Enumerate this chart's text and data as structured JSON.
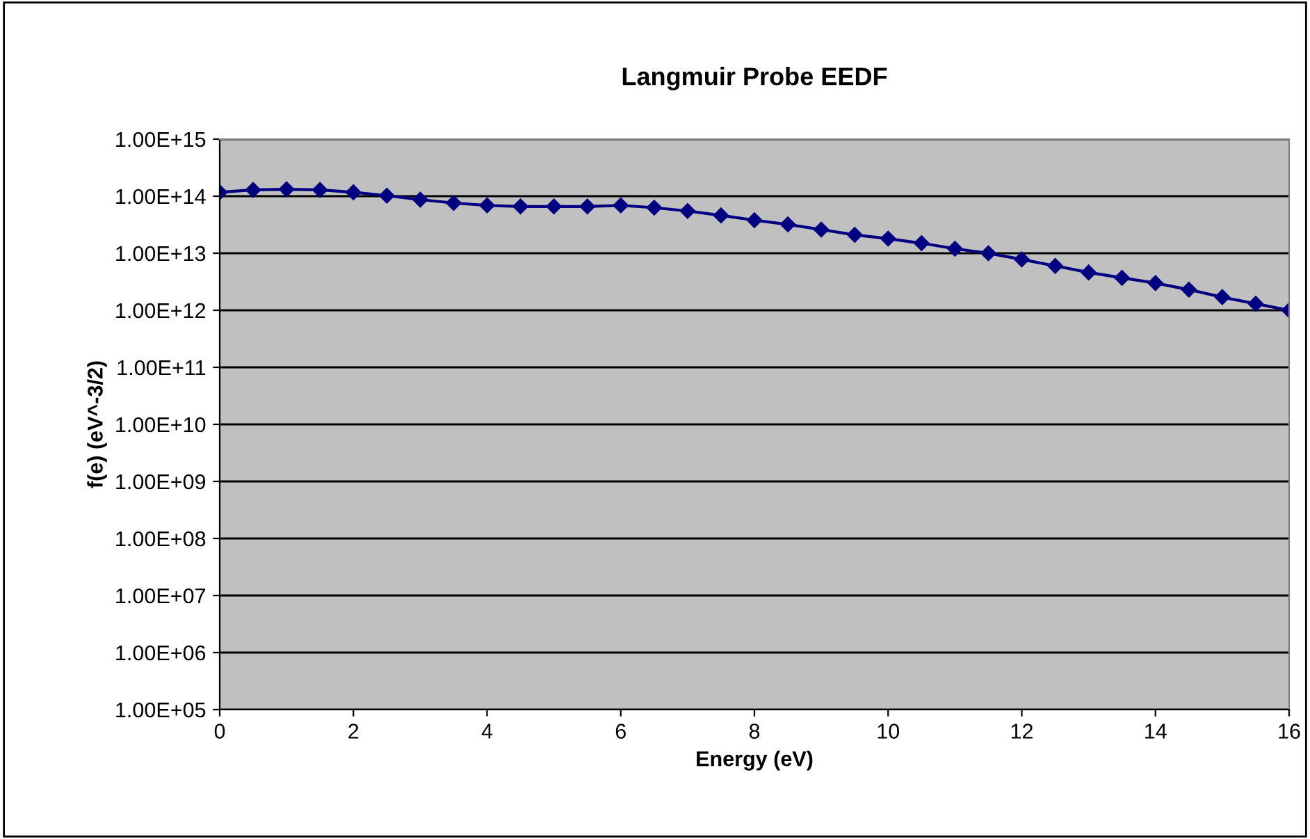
{
  "chart_data": {
    "type": "line",
    "title": "Langmuir Probe EEDF",
    "xlabel": "Energy (eV)",
    "ylabel": "f(e) (eV^-3/2)",
    "x": [
      0,
      0.5,
      1,
      1.5,
      2,
      2.5,
      3,
      3.5,
      4,
      4.5,
      5,
      5.5,
      6,
      6.5,
      7,
      7.5,
      8,
      8.5,
      9,
      9.5,
      10,
      10.5,
      11,
      11.5,
      12,
      12.5,
      13,
      13.5,
      14,
      14.5,
      15,
      15.5,
      16
    ],
    "series": [
      {
        "color": "#000080",
        "values": [
          117000000000000.0,
          129000000000000.0,
          132000000000000.0,
          129000000000000.0,
          117000000000000.0,
          102000000000000.0,
          87000000000000.0,
          76000000000000.0,
          69000000000000.0,
          66000000000000.0,
          66000000000000.0,
          66000000000000.0,
          69000000000000.0,
          63000000000000.0,
          55000000000000.0,
          46000000000000.0,
          38000000000000.0,
          32000000000000.0,
          26000000000000.0,
          21000000000000.0,
          18000000000000.0,
          15000000000000.0,
          12000000000000.0,
          10000000000000.0,
          7800000000000.0,
          6000000000000.0,
          4600000000000.0,
          3700000000000.0,
          3000000000000.0,
          2300000000000.0,
          1700000000000.0,
          1300000000000.0,
          1000000000000.0
        ]
      }
    ],
    "log": "y",
    "xlim": [
      0,
      16
    ],
    "xticks": [
      0,
      2,
      4,
      6,
      8,
      10,
      12,
      14,
      16
    ],
    "ylim": [
      100000.0,
      1000000000000000.0
    ],
    "yticks": [
      {
        "value": 100000.0,
        "label": "1.00E+05"
      },
      {
        "value": 1000000.0,
        "label": "1.00E+06"
      },
      {
        "value": 10000000.0,
        "label": "1.00E+07"
      },
      {
        "value": 100000000.0,
        "label": "1.00E+08"
      },
      {
        "value": 1000000000.0,
        "label": "1.00E+09"
      },
      {
        "value": 10000000000.0,
        "label": "1.00E+10"
      },
      {
        "value": 100000000000.0,
        "label": "1.00E+11"
      },
      {
        "value": 1000000000000.0,
        "label": "1.00E+12"
      },
      {
        "value": 10000000000000.0,
        "label": "1.00E+13"
      },
      {
        "value": 100000000000000.0,
        "label": "1.00E+14"
      },
      {
        "value": 1000000000000000.0,
        "label": "1.00E+15"
      }
    ],
    "grid": "y",
    "marker": "diamond",
    "line_style": "solid"
  }
}
